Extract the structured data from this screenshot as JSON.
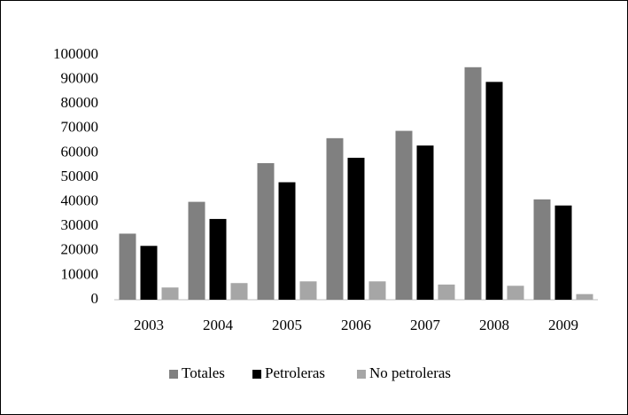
{
  "chart_data": {
    "type": "bar",
    "categories": [
      "2003",
      "2004",
      "2005",
      "2006",
      "2007",
      "2008",
      "2009"
    ],
    "series": [
      {
        "name": "Totales",
        "color": "#808080",
        "values": [
          27000,
          40000,
          55800,
          66000,
          69000,
          95000,
          41000
        ]
      },
      {
        "name": "Petroleras",
        "color": "#000000",
        "values": [
          22000,
          33000,
          48000,
          58000,
          63000,
          89000,
          38500
        ]
      },
      {
        "name": "No petroleras",
        "color": "#a6a6a6",
        "values": [
          5000,
          6800,
          7500,
          7500,
          6200,
          5700,
          2300
        ]
      }
    ],
    "ylim": [
      0,
      100000
    ],
    "yticks": [
      0,
      10000,
      20000,
      30000,
      40000,
      50000,
      60000,
      70000,
      80000,
      90000,
      100000
    ],
    "grid": false,
    "legend": "bottom"
  }
}
